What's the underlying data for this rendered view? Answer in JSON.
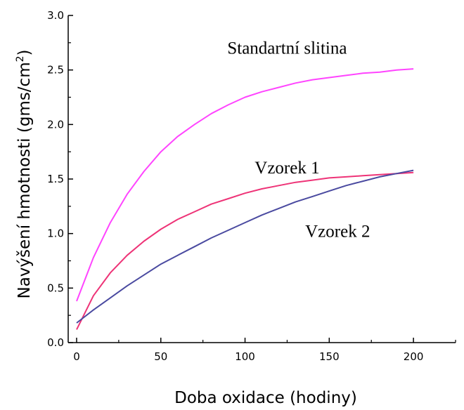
{
  "chart_data": {
    "type": "line",
    "xlabel": "Doba oxidace (hodiny)",
    "ylabel": "Navýšení hmotnosti (gms/cm",
    "ylabel_sup": "2",
    "ylabel_tail": ")",
    "xlim": [
      -5,
      225
    ],
    "ylim": [
      0,
      3.0
    ],
    "xticks": [
      "0",
      "50",
      "100",
      "150",
      "200"
    ],
    "yticks": [
      "0.0",
      "0.5",
      "1.0",
      "1.5",
      "2.0",
      "2.5",
      "3.0"
    ],
    "series": [
      {
        "name": "Standartní slitina",
        "color": "#ff44ff",
        "x": [
          0,
          10,
          20,
          30,
          40,
          50,
          60,
          70,
          80,
          90,
          100,
          110,
          120,
          130,
          140,
          150,
          160,
          170,
          180,
          190,
          200
        ],
        "y": [
          0.38,
          0.78,
          1.1,
          1.36,
          1.57,
          1.75,
          1.89,
          2.0,
          2.1,
          2.18,
          2.25,
          2.3,
          2.34,
          2.38,
          2.41,
          2.43,
          2.45,
          2.47,
          2.48,
          2.5,
          2.51
        ]
      },
      {
        "name": "Vzorek 1",
        "color": "#ee3377",
        "x": [
          0,
          10,
          20,
          30,
          40,
          50,
          60,
          70,
          80,
          90,
          100,
          110,
          120,
          130,
          140,
          150,
          160,
          170,
          180,
          190,
          200
        ],
        "y": [
          0.12,
          0.43,
          0.64,
          0.8,
          0.93,
          1.04,
          1.13,
          1.2,
          1.27,
          1.32,
          1.37,
          1.41,
          1.44,
          1.47,
          1.49,
          1.51,
          1.52,
          1.53,
          1.54,
          1.55,
          1.56
        ]
      },
      {
        "name": "Vzorek 2",
        "color": "#4a4aa0",
        "x": [
          0,
          10,
          20,
          30,
          40,
          50,
          60,
          70,
          80,
          90,
          100,
          110,
          120,
          130,
          140,
          150,
          160,
          170,
          180,
          190,
          200
        ],
        "y": [
          0.18,
          0.3,
          0.41,
          0.52,
          0.62,
          0.72,
          0.8,
          0.88,
          0.96,
          1.03,
          1.1,
          1.17,
          1.23,
          1.29,
          1.34,
          1.39,
          1.44,
          1.48,
          1.52,
          1.55,
          1.58
        ]
      }
    ],
    "annotations": [
      {
        "text": "Standartní slitina",
        "x": 125,
        "y": 2.65
      },
      {
        "text": "Vzorek 1",
        "x": 125,
        "y": 1.55
      },
      {
        "text": "Vzorek 2",
        "x": 155,
        "y": 0.97
      }
    ],
    "grid": false,
    "legend": "none"
  }
}
